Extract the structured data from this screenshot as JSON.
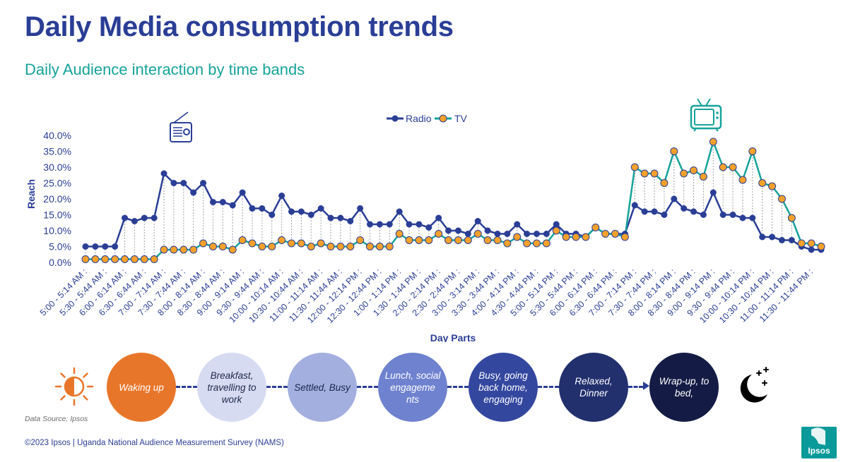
{
  "title": "Daily Media consumption trends",
  "subtitle": "Daily Audience interaction by time bands",
  "chart_data": {
    "type": "line",
    "title": "",
    "xlabel": "Day Parts",
    "ylabel": "Reach",
    "ylim": [
      0,
      40
    ],
    "yticks": [
      "0.0%",
      "5.0%",
      "10.0%",
      "15.0%",
      "20.0%",
      "25.0%",
      "30.0%",
      "35.0%",
      "40.0%"
    ],
    "legend": {
      "position": "top-center",
      "entries": [
        "Radio",
        "TV"
      ]
    },
    "x": [
      "5:00 - 5:14 AM",
      "5:15 - 5:29 AM",
      "5:30 - 5:44 AM",
      "5:45 - 5:59 AM",
      "6:00 - 6:14 AM",
      "6:15 - 6:29 AM",
      "6:30 - 6:44 AM",
      "6:45 - 6:59 AM",
      "7:00 - 7:14 AM",
      "7:15 - 7:29 AM",
      "7:30 - 7:44 AM",
      "7:45 - 7:59 AM",
      "8:00 - 8:14 AM",
      "8:15 - 8:29 AM",
      "8:30 - 8:44 AM",
      "8:45 - 8:59 AM",
      "9:00 - 9:14 AM",
      "9:15 - 9:29 AM",
      "9:30 - 9:44 AM",
      "9:45 - 9:59 AM",
      "10:00 - 10:14 AM",
      "10:15 - 10:29 AM",
      "10:30 - 10:44 AM",
      "10:45 - 10:59 AM",
      "11:00 - 11:14 AM",
      "11:15 - 11:29 AM",
      "11:30 - 11:44 AM",
      "11:45 - 11:59 AM",
      "12:00 - 12:14 PM",
      "12:15 - 12:29 PM",
      "12:30 - 12:44 PM",
      "12:45 - 12:59 PM",
      "1:00 - 1:14 PM",
      "1:15 - 1:29 PM",
      "1:30 - 1:44 PM",
      "1:45 - 1:59 PM",
      "2:00 - 2:14 PM",
      "2:15 - 2:29 PM",
      "2:30 - 2:44 PM",
      "2:45 - 2:59 PM",
      "3:00 - 3:14 PM",
      "3:15 - 3:29 PM",
      "3:30 - 3:44 PM",
      "3:45 - 3:59 PM",
      "4:00 - 4:14 PM",
      "4:15 - 4:29 PM",
      "4:30 - 4:44 PM",
      "4:45 - 4:59 PM",
      "5:00 - 5:14 PM",
      "5:15 - 5:29 PM",
      "5:30 - 5:44 PM",
      "5:45 - 5:59 PM",
      "6:00 - 6:14 PM",
      "6:15 - 6:29 PM",
      "6:30 - 6:44 PM",
      "6:45 - 6:59 PM",
      "7:00 - 7:14 PM",
      "7:15 - 7:29 PM",
      "7:30 - 7:44 PM",
      "7:45 - 7:59 PM",
      "8:00 - 8:14 PM",
      "8:15 - 8:29 PM",
      "8:30 - 8:44 PM",
      "8:45 - 8:59 PM",
      "9:00 - 9:14 PM",
      "9:15 - 9:29 PM",
      "9:30 - 9:44 PM",
      "9:45 - 9:59 PM",
      "10:00 - 10:14 PM",
      "10:15 - 10:29 PM",
      "10:30 - 10:44 PM",
      "10:45 - 10:59 PM",
      "11:00 - 11:14 PM",
      "11:15 - 11:29 PM",
      "11:30 - 11:44 PM",
      "11:45 - 11:59 PM"
    ],
    "xtick_labels": [
      "5:00 - 5:14 AM",
      "5:30 - 5:44 AM",
      "6:00 - 6:14 AM",
      "6:30 - 6:44 AM",
      "7:00 - 7:14 AM",
      "7:30 - 7:44 AM",
      "8:00 - 8:14 AM",
      "8:30 - 8:44 AM",
      "9:00 - 9:14 AM",
      "9:30 - 9:44 AM",
      "10:00 - 10:14 AM",
      "10:30 - 10:44 AM",
      "11:00 - 11:14 AM",
      "11:30 - 11:44 AM",
      "12:00 - 12:14 PM",
      "12:30 - 12:44 PM",
      "1:00 - 1:14 PM",
      "1:30 - 1:44 PM",
      "2:00 - 2:14 PM",
      "2:30 - 2:44 PM",
      "3:00 - 3:14 PM",
      "3:30 - 3:44 PM",
      "4:00 - 4:14 PM",
      "4:30 - 4:44 PM",
      "5:00 - 5:14 PM",
      "5:30 - 5:44 PM",
      "6:00 - 6:14 PM",
      "6:30 - 6:44 PM",
      "7:00 - 7:14 PM",
      "7:30 - 7:44 PM",
      "8:00 - 8:14 PM",
      "8:30 - 8:44 PM",
      "9:00 - 9:14 PM",
      "9:30 - 9:44 PM",
      "10:00 - 10:14 PM",
      "10:30 - 10:44 PM",
      "11:00 - 11:14 PM",
      "11:30 - 11:44 PM"
    ],
    "series": [
      {
        "name": "Radio",
        "color": "#2a3e96",
        "values": [
          5,
          5,
          5,
          5,
          14,
          13,
          14,
          14,
          28,
          25,
          25,
          22,
          25,
          19,
          19,
          18,
          22,
          17,
          17,
          15,
          21,
          16,
          16,
          15,
          17,
          14,
          14,
          13,
          17,
          12,
          12,
          12,
          16,
          12,
          12,
          11,
          14,
          10,
          10,
          9,
          13,
          10,
          9,
          9,
          12,
          9,
          9,
          9,
          12,
          9,
          9,
          8,
          11,
          9,
          9,
          9,
          18,
          16,
          16,
          15,
          20,
          17,
          16,
          15,
          22,
          15,
          15,
          14,
          14,
          8,
          8,
          7,
          7,
          5,
          4,
          4
        ]
      },
      {
        "name": "TV",
        "color": "#16a39a",
        "values": [
          1,
          1,
          1,
          1,
          1,
          1,
          1,
          1,
          4,
          4,
          4,
          4,
          6,
          5,
          5,
          4,
          7,
          6,
          5,
          5,
          7,
          6,
          6,
          5,
          6,
          5,
          5,
          5,
          7,
          5,
          5,
          5,
          9,
          7,
          7,
          7,
          9,
          7,
          7,
          7,
          9,
          7,
          7,
          6,
          8,
          6,
          6,
          6,
          10,
          8,
          8,
          8,
          11,
          9,
          9,
          8,
          30,
          28,
          28,
          25,
          35,
          28,
          29,
          27,
          38,
          30,
          30,
          26,
          35,
          25,
          24,
          20,
          14,
          6,
          6,
          5
        ]
      }
    ]
  },
  "stages": [
    {
      "label": "Waking up",
      "bg": "#e8762a",
      "fg": "#ffffff"
    },
    {
      "label": "Breakfast, travelling to work",
      "bg": "#d6dbf2",
      "fg": "#222a4a"
    },
    {
      "label": "Settled, Busy",
      "bg": "#a3afdf",
      "fg": "#1b2450"
    },
    {
      "label": "Lunch, social engageme nts",
      "bg": "#6f82cf",
      "fg": "#ffffff"
    },
    {
      "label": "Busy, going back home, engaging",
      "bg": "#34479f",
      "fg": "#ffffff"
    },
    {
      "label": "Relaxed, Dinner",
      "bg": "#22306e",
      "fg": "#ffffff"
    },
    {
      "label": "Wrap-up, to bed,",
      "bg": "#141c45",
      "fg": "#ffffff"
    }
  ],
  "icons": {
    "radio": "radio-icon",
    "tv": "tv-icon",
    "sun": "sun-icon",
    "moon": "moon-stars-icon"
  },
  "source": "Data Source: Ipsos",
  "copyright": "©2023 Ipsos | Uganda National Audience Measurement Survey (NAMS)",
  "logo_text": "Ipsos"
}
